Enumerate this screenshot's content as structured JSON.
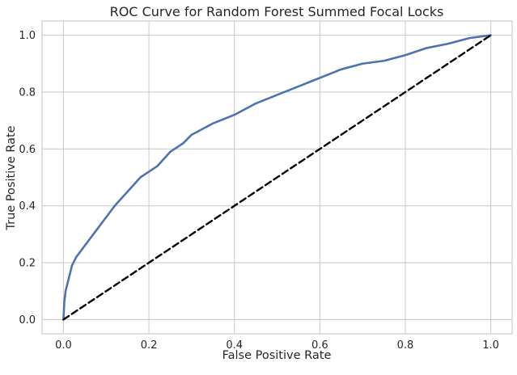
{
  "chart_data": {
    "type": "line",
    "title": "ROC Curve for Random Forest Summed Focal Locks",
    "xlabel": "False Positive Rate",
    "ylabel": "True Positive Rate",
    "xlim": [
      -0.05,
      1.05
    ],
    "ylim": [
      -0.05,
      1.05
    ],
    "xticks": [
      0.0,
      0.2,
      0.4,
      0.6,
      0.8,
      1.0
    ],
    "yticks": [
      0.0,
      0.2,
      0.4,
      0.6,
      0.8,
      1.0
    ],
    "xtick_labels": [
      "0.0",
      "0.2",
      "0.4",
      "0.6",
      "0.8",
      "1.0"
    ],
    "ytick_labels": [
      "0.0",
      "0.2",
      "0.4",
      "0.6",
      "0.8",
      "1.0"
    ],
    "grid": true,
    "legend": "none",
    "colors": {
      "roc": "#4c72b0",
      "diagonal": "#000000",
      "grid": "#cccccc",
      "spine": "#cccccc"
    },
    "series": [
      {
        "style": "solid",
        "x": [
          0.0,
          0.002,
          0.005,
          0.01,
          0.015,
          0.02,
          0.03,
          0.04,
          0.05,
          0.06,
          0.08,
          0.1,
          0.12,
          0.15,
          0.18,
          0.2,
          0.22,
          0.25,
          0.28,
          0.3,
          0.35,
          0.4,
          0.45,
          0.5,
          0.55,
          0.6,
          0.65,
          0.7,
          0.75,
          0.8,
          0.85,
          0.9,
          0.95,
          1.0
        ],
        "y": [
          0.0,
          0.06,
          0.1,
          0.13,
          0.16,
          0.19,
          0.22,
          0.24,
          0.26,
          0.28,
          0.32,
          0.36,
          0.4,
          0.45,
          0.5,
          0.52,
          0.54,
          0.59,
          0.62,
          0.65,
          0.69,
          0.72,
          0.76,
          0.79,
          0.82,
          0.85,
          0.88,
          0.9,
          0.91,
          0.93,
          0.955,
          0.97,
          0.99,
          1.0
        ]
      },
      {
        "style": "dashed",
        "x": [
          0.0,
          1.0
        ],
        "y": [
          0.0,
          1.0
        ]
      }
    ]
  }
}
